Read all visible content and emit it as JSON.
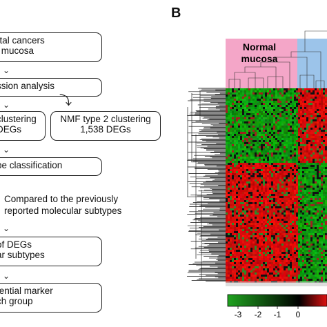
{
  "panel_b_label": "B",
  "flow": {
    "box1": [
      "rtal cancers",
      "l mucosa"
    ],
    "box2": [
      "ssion analysis"
    ],
    "box3": [
      "clustering",
      "DEGs"
    ],
    "box4": [
      "NMF type 2 clustering",
      "1,538 DEGs"
    ],
    "box5": [
      "pe classification"
    ],
    "compare": [
      "Compared to the previously",
      "reported molecular subtypes"
    ],
    "box6": [
      "of DEGs",
      "ar subtypes"
    ],
    "box7": [
      "tential marker",
      "ch group"
    ]
  },
  "heatmap": {
    "group_label": [
      "Normal",
      "mucosa"
    ],
    "normal_color": "#f4a6c8",
    "tumor_color": "#9cc4ea",
    "low_color": "#1fa31f",
    "high_color": "#e01010",
    "mid_color": "#000000"
  },
  "colorbar": {
    "ticks": [
      "-3",
      "-2",
      "-1",
      "0"
    ]
  }
}
